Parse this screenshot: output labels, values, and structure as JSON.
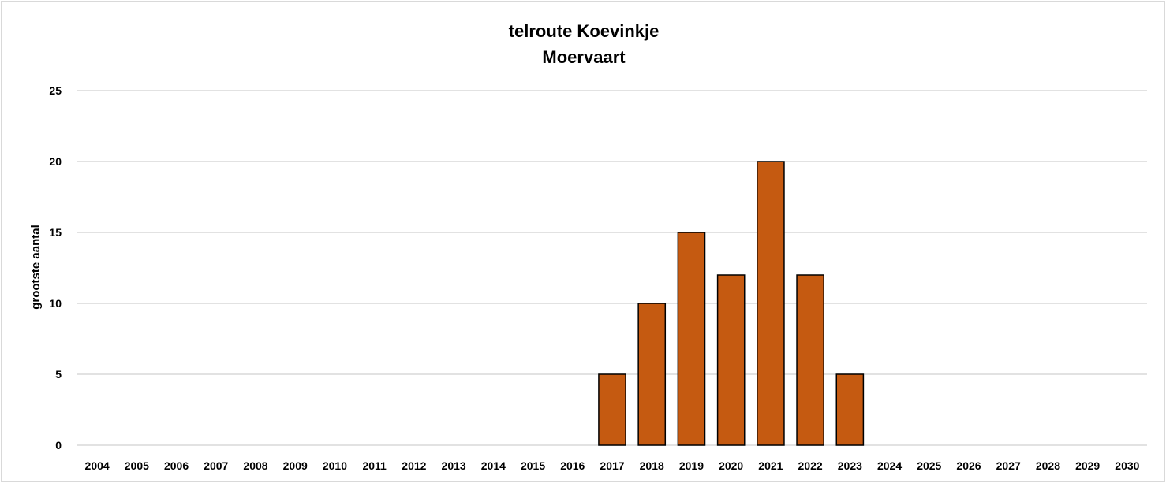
{
  "chart_data": {
    "type": "bar",
    "title": "telroute Koevinkje",
    "subtitle": "Moervaart",
    "xlabel": "",
    "ylabel": "grootste aantal",
    "categories": [
      "2004",
      "2005",
      "2006",
      "2007",
      "2008",
      "2009",
      "2010",
      "2011",
      "2012",
      "2013",
      "2014",
      "2015",
      "2016",
      "2017",
      "2018",
      "2019",
      "2020",
      "2021",
      "2022",
      "2023",
      "2024",
      "2025",
      "2026",
      "2027",
      "2028",
      "2029",
      "2030"
    ],
    "values": [
      0,
      0,
      0,
      0,
      0,
      0,
      0,
      0,
      0,
      0,
      0,
      0,
      0,
      5,
      10,
      15,
      12,
      20,
      12,
      5,
      0,
      0,
      0,
      0,
      0,
      0,
      0
    ],
    "ylim": [
      0,
      25
    ],
    "yticks": [
      0,
      5,
      10,
      15,
      20,
      25
    ],
    "grid": true,
    "legend": "none",
    "colors": {
      "bar_fill": "#c55a11",
      "bar_stroke": "#000000",
      "grid": "#d9d9d9"
    }
  }
}
